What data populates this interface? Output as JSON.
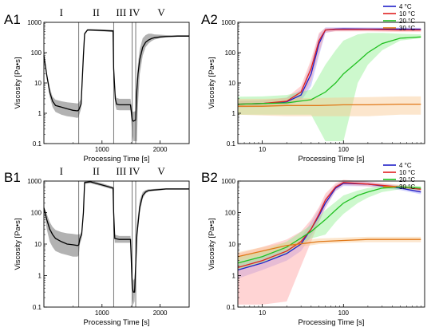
{
  "chart_data": [
    {
      "id": "A1",
      "type": "line",
      "panel_label": "A1",
      "xlabel": "Processing Time [s]",
      "ylabel": "Viscosity [Pa•s]",
      "xlim": [
        0,
        2500
      ],
      "ylim": [
        0.1,
        1000
      ],
      "yscale": "log",
      "xticks": [
        1000,
        2000
      ],
      "yticks": [
        0.1,
        1,
        10,
        100,
        1000
      ],
      "ytick_labels": [
        "0.1",
        "1",
        "10",
        "100",
        "1000"
      ],
      "phase_dividers": [
        600,
        1200,
        1520,
        1580
      ],
      "phase_labels": [
        {
          "text": "I",
          "x": 300
        },
        {
          "text": "II",
          "x": 900
        },
        {
          "text": "III",
          "x": 1330
        },
        {
          "text": "IV",
          "x": 1560
        },
        {
          "text": "V",
          "x": 2020
        }
      ],
      "series": [
        {
          "color": "#000000",
          "band_color": "#aaaaaa",
          "x": [
            0,
            50,
            100,
            150,
            200,
            300,
            400,
            500,
            580,
            600,
            640,
            680,
            700,
            750,
            800,
            1000,
            1190,
            1200,
            1230,
            1250,
            1300,
            1490,
            1520,
            1540,
            1580,
            1600,
            1620,
            1650,
            1700,
            1750,
            1800,
            1850,
            1900,
            2000,
            2100,
            2200,
            2300,
            2400,
            2500
          ],
          "y": [
            80,
            18,
            5,
            2.5,
            1.8,
            1.6,
            1.4,
            1.25,
            1.2,
            1.3,
            2,
            80,
            420,
            560,
            560,
            540,
            520,
            30,
            3,
            2,
            1.9,
            1.9,
            0.6,
            0.55,
            0.6,
            6,
            20,
            60,
            150,
            220,
            260,
            290,
            310,
            330,
            340,
            345,
            350,
            350,
            350
          ],
          "lower": [
            70,
            14,
            3.5,
            1.6,
            1.1,
            0.9,
            0.8,
            0.75,
            0.7,
            0.8,
            1.4,
            60,
            380,
            520,
            520,
            500,
            480,
            20,
            1.8,
            1.3,
            1.25,
            1.25,
            0.2,
            0.12,
            0.12,
            0.12,
            2,
            20,
            80,
            150,
            200,
            240,
            270,
            300,
            320,
            330,
            335,
            340,
            345
          ],
          "upper": [
            95,
            22,
            7,
            3.5,
            2.8,
            2.5,
            2.3,
            2.2,
            2.1,
            2.2,
            3,
            110,
            460,
            600,
            600,
            580,
            560,
            45,
            4.5,
            3.2,
            3,
            3,
            1.2,
            1.1,
            1.2,
            12,
            45,
            130,
            300,
            380,
            420,
            420,
            400,
            390,
            380,
            380,
            380,
            380,
            380
          ]
        }
      ]
    },
    {
      "id": "A2",
      "type": "line",
      "panel_label": "A2",
      "xlabel": "Processing Time [s]",
      "ylabel": "Viscosity [Pa•s]",
      "xlim": [
        5,
        1000
      ],
      "ylim": [
        0.1,
        1000
      ],
      "xscale": "log",
      "yscale": "log",
      "xticks": [
        10,
        100
      ],
      "yticks": [
        0.1,
        1,
        10,
        100,
        1000
      ],
      "ytick_labels": [
        "0.1",
        "1",
        "10",
        "100",
        "1000"
      ],
      "legend": {
        "position": "top-right"
      },
      "series": [
        {
          "name": "4 °C",
          "color": "#2020c8",
          "band_color": "#a0a0ff",
          "x": [
            5,
            10,
            20,
            30,
            40,
            50,
            60,
            80,
            100,
            200,
            500,
            900
          ],
          "y": [
            2,
            2.1,
            2.4,
            4,
            20,
            200,
            560,
            600,
            610,
            600,
            600,
            590
          ],
          "lower": [
            1.5,
            1.6,
            1.8,
            2.5,
            8,
            80,
            450,
            520,
            530,
            540,
            540,
            530
          ],
          "upper": [
            2.6,
            2.7,
            3.2,
            6,
            45,
            400,
            680,
            680,
            690,
            680,
            670,
            660
          ]
        },
        {
          "name": "10 °C",
          "color": "#e02020",
          "band_color": "#ffa0a0",
          "x": [
            5,
            10,
            20,
            30,
            40,
            50,
            60,
            80,
            100,
            200,
            500,
            900
          ],
          "y": [
            2,
            2.1,
            2.5,
            5,
            30,
            250,
            560,
            580,
            580,
            580,
            560,
            560
          ],
          "lower": [
            1.6,
            1.7,
            1.9,
            3,
            12,
            100,
            460,
            500,
            500,
            500,
            480,
            480
          ],
          "upper": [
            2.6,
            2.7,
            3.3,
            8,
            60,
            450,
            660,
            660,
            660,
            660,
            640,
            640
          ]
        },
        {
          "name": "20 °C",
          "color": "#20c020",
          "band_color": "#90f090",
          "x": [
            5,
            10,
            20,
            40,
            60,
            80,
            100,
            150,
            200,
            300,
            500,
            900
          ],
          "y": [
            2,
            2.1,
            2.2,
            2.8,
            5,
            10,
            20,
            50,
            100,
            200,
            300,
            330
          ],
          "lower": [
            0.9,
            0.9,
            0.9,
            0.9,
            0.12,
            0.12,
            0.12,
            10,
            40,
            120,
            250,
            300
          ],
          "upper": [
            3.5,
            3.6,
            4,
            6,
            40,
            120,
            250,
            400,
            450,
            450,
            420,
            400
          ]
        },
        {
          "name": "30 °C",
          "color": "#e07818",
          "band_color": "#f8c890",
          "x": [
            5,
            10,
            20,
            50,
            100,
            200,
            500,
            900
          ],
          "y": [
            1.7,
            1.7,
            1.8,
            1.8,
            1.9,
            1.9,
            2,
            2
          ],
          "lower": [
            0.9,
            0.85,
            0.8,
            0.8,
            0.8,
            0.8,
            0.9,
            0.9
          ],
          "upper": [
            3,
            3,
            3.1,
            3.2,
            3.3,
            3.4,
            3.6,
            3.6
          ]
        }
      ]
    },
    {
      "id": "B1",
      "type": "line",
      "panel_label": "B1",
      "xlabel": "Processing Time [s]",
      "ylabel": "Viscosity [Pa•s]",
      "xlim": [
        0,
        2500
      ],
      "ylim": [
        0.1,
        1000
      ],
      "yscale": "log",
      "xticks": [
        1000,
        2000
      ],
      "yticks": [
        0.1,
        1,
        10,
        100,
        1000
      ],
      "ytick_labels": [
        "0.1",
        "1",
        "10",
        "100",
        "1000"
      ],
      "phase_dividers": [
        600,
        1200,
        1520,
        1580
      ],
      "phase_labels": [
        {
          "text": "I",
          "x": 300
        },
        {
          "text": "II",
          "x": 900
        },
        {
          "text": "III",
          "x": 1330
        },
        {
          "text": "IV",
          "x": 1560
        },
        {
          "text": "V",
          "x": 2020
        }
      ],
      "series": [
        {
          "color": "#000000",
          "band_color": "#aaaaaa",
          "x": [
            0,
            50,
            100,
            150,
            200,
            300,
            400,
            500,
            580,
            600,
            620,
            650,
            680,
            700,
            800,
            1000,
            1190,
            1200,
            1220,
            1300,
            1490,
            1500,
            1520,
            1540,
            1560,
            1580,
            1600,
            1650,
            1700,
            1750,
            1800,
            1900,
            2000,
            2100,
            2200,
            2300,
            2400,
            2500
          ],
          "y": [
            140,
            60,
            30,
            20,
            15,
            12,
            10,
            9.5,
            9,
            9.5,
            15,
            20,
            100,
            900,
            950,
            750,
            600,
            100,
            15,
            14,
            14,
            5,
            0.4,
            0.3,
            0.3,
            2,
            20,
            150,
            350,
            450,
            500,
            520,
            540,
            560,
            560,
            560,
            560,
            560
          ],
          "lower": [
            130,
            30,
            12,
            8,
            6,
            5,
            4.5,
            4,
            4,
            4.5,
            10,
            15,
            80,
            800,
            850,
            680,
            540,
            80,
            11,
            11,
            11,
            3,
            0.2,
            0.12,
            0.15,
            1,
            12,
            100,
            280,
            400,
            460,
            490,
            510,
            530,
            530,
            530,
            530,
            530
          ],
          "upper": [
            160,
            90,
            50,
            35,
            28,
            24,
            22,
            21,
            20,
            21,
            20,
            25,
            130,
            1000,
            1050,
            850,
            660,
            120,
            20,
            18,
            18,
            8,
            0.9,
            0.7,
            0.8,
            5,
            40,
            250,
            450,
            520,
            550,
            560,
            580,
            590,
            590,
            590,
            590,
            590
          ]
        }
      ]
    },
    {
      "id": "B2",
      "type": "line",
      "panel_label": "B2",
      "xlabel": "Processing Time [s]",
      "ylabel": "Viscosity [Pa•s]",
      "xlim": [
        5,
        1000
      ],
      "ylim": [
        0.1,
        1000
      ],
      "xscale": "log",
      "yscale": "log",
      "xticks": [
        10,
        100
      ],
      "yticks": [
        0.1,
        1,
        10,
        100,
        1000
      ],
      "ytick_labels": [
        "0.1",
        "1",
        "10",
        "100",
        "1000"
      ],
      "legend": {
        "position": "top-right"
      },
      "series": [
        {
          "name": "4 °C",
          "color": "#2020c8",
          "band_color": "#a0a0ff",
          "x": [
            5,
            10,
            20,
            30,
            40,
            50,
            60,
            80,
            100,
            200,
            500,
            900
          ],
          "y": [
            1.5,
            2.5,
            5,
            10,
            30,
            80,
            200,
            600,
            850,
            800,
            600,
            450
          ],
          "lower": [
            0.8,
            1.5,
            3,
            6,
            18,
            50,
            140,
            480,
            700,
            680,
            520,
            380
          ],
          "upper": [
            2.5,
            4,
            8,
            16,
            50,
            130,
            300,
            750,
            1000,
            950,
            700,
            520
          ]
        },
        {
          "name": "10 °C",
          "color": "#e02020",
          "band_color": "#ffa0a0",
          "x": [
            5,
            10,
            20,
            30,
            40,
            50,
            60,
            80,
            100,
            200,
            500,
            900
          ],
          "y": [
            1.8,
            3,
            6,
            12,
            30,
            90,
            250,
            650,
            900,
            800,
            650,
            550
          ],
          "lower": [
            0.12,
            0.12,
            0.15,
            2,
            12,
            50,
            150,
            500,
            750,
            680,
            560,
            470
          ],
          "upper": [
            5,
            8,
            14,
            25,
            60,
            150,
            400,
            850,
            1100,
            950,
            760,
            640
          ]
        },
        {
          "name": "20 °C",
          "color": "#20c020",
          "band_color": "#90f090",
          "x": [
            5,
            10,
            20,
            40,
            60,
            80,
            100,
            150,
            200,
            300,
            500,
            900
          ],
          "y": [
            2.5,
            4,
            8,
            25,
            60,
            120,
            200,
            350,
            450,
            600,
            650,
            600
          ],
          "lower": [
            1.5,
            2.5,
            5,
            15,
            20,
            50,
            90,
            200,
            300,
            450,
            550,
            520
          ],
          "upper": [
            4,
            6,
            12,
            40,
            120,
            220,
            350,
            500,
            600,
            700,
            740,
            700
          ]
        },
        {
          "name": "30 °C",
          "color": "#e07818",
          "band_color": "#f8c890",
          "x": [
            5,
            10,
            20,
            50,
            100,
            200,
            500,
            900
          ],
          "y": [
            4,
            6,
            9,
            12,
            13,
            14,
            14,
            14
          ],
          "lower": [
            3,
            4.5,
            7,
            10,
            11,
            11.5,
            11.5,
            11.5
          ],
          "upper": [
            5.5,
            8,
            11.5,
            15,
            16,
            17,
            17,
            17
          ]
        }
      ]
    }
  ]
}
